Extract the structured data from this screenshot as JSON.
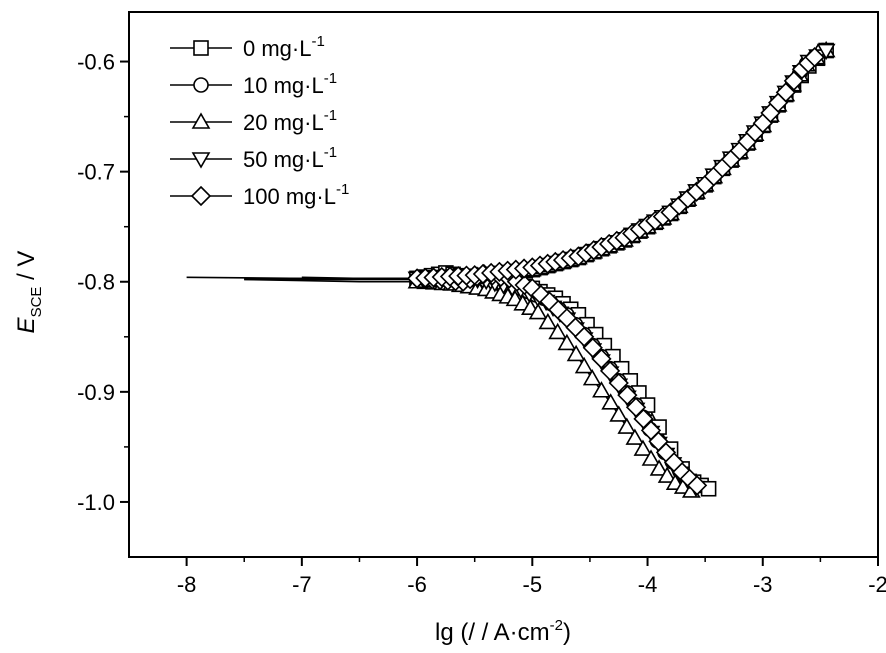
{
  "chart_data": {
    "type": "line",
    "xlabel": "lg (/ / A·cm",
    "xlabel_sup": "-2",
    "xlabel_end": ")",
    "ylabel_main": "E",
    "ylabel_sub": "SCE",
    "ylabel_unit": " / V",
    "xlim": [
      -8.5,
      -2
    ],
    "ylim": [
      -1.05,
      -0.555
    ],
    "x_ticks": [
      -8,
      -7,
      -6,
      -5,
      -4,
      -3,
      -2
    ],
    "x_tick_labels": [
      "-8",
      "-7",
      "-6",
      "-5",
      "-4",
      "-3",
      "-2"
    ],
    "y_ticks": [
      -1.0,
      -0.9,
      -0.8,
      -0.7,
      -0.6
    ],
    "y_tick_labels": [
      "-1.0",
      "-0.9",
      "-0.8",
      "-0.7",
      "-0.6"
    ],
    "grid": false,
    "legend_position": "top-left",
    "series": [
      {
        "name": "0 mg·L",
        "name_sup": "-1",
        "marker": "square",
        "cathodic": [
          [
            -8.0,
            -0.796
          ],
          [
            -7.0,
            -0.797
          ],
          [
            -6.0,
            -0.797
          ],
          [
            -5.75,
            -0.792
          ],
          [
            -5.5,
            -0.797
          ],
          [
            -5.2,
            -0.801
          ],
          [
            -5.0,
            -0.806
          ],
          [
            -4.8,
            -0.815
          ],
          [
            -4.6,
            -0.83
          ],
          [
            -4.45,
            -0.848
          ],
          [
            -4.3,
            -0.868
          ],
          [
            -4.15,
            -0.89
          ],
          [
            -4.0,
            -0.912
          ],
          [
            -3.9,
            -0.932
          ],
          [
            -3.8,
            -0.952
          ],
          [
            -3.7,
            -0.97
          ],
          [
            -3.6,
            -0.982
          ],
          [
            -3.47,
            -0.988
          ]
        ],
        "anodic": [
          [
            -6.0,
            -0.797
          ],
          [
            -5.5,
            -0.795
          ],
          [
            -5.0,
            -0.789
          ],
          [
            -4.6,
            -0.778
          ],
          [
            -4.2,
            -0.762
          ],
          [
            -3.8,
            -0.738
          ],
          [
            -3.5,
            -0.712
          ],
          [
            -3.2,
            -0.682
          ],
          [
            -3.0,
            -0.658
          ],
          [
            -2.8,
            -0.63
          ],
          [
            -2.6,
            -0.604
          ],
          [
            -2.45,
            -0.59
          ]
        ]
      },
      {
        "name": "10 mg·L",
        "name_sup": "-1",
        "marker": "circle",
        "cathodic": [
          [
            -7.5,
            -0.798
          ],
          [
            -7.0,
            -0.798
          ],
          [
            -6.0,
            -0.798
          ],
          [
            -5.7,
            -0.796
          ],
          [
            -5.4,
            -0.799
          ],
          [
            -5.1,
            -0.806
          ],
          [
            -4.9,
            -0.815
          ],
          [
            -4.7,
            -0.83
          ],
          [
            -4.55,
            -0.848
          ],
          [
            -4.4,
            -0.868
          ],
          [
            -4.25,
            -0.89
          ],
          [
            -4.1,
            -0.912
          ],
          [
            -3.98,
            -0.934
          ],
          [
            -3.85,
            -0.955
          ],
          [
            -3.72,
            -0.972
          ],
          [
            -3.6,
            -0.985
          ]
        ],
        "anodic": [
          [
            -6.0,
            -0.798
          ],
          [
            -5.5,
            -0.795
          ],
          [
            -5.0,
            -0.789
          ],
          [
            -4.6,
            -0.778
          ],
          [
            -4.2,
            -0.762
          ],
          [
            -3.8,
            -0.738
          ],
          [
            -3.5,
            -0.712
          ],
          [
            -3.2,
            -0.681
          ],
          [
            -3.0,
            -0.657
          ],
          [
            -2.8,
            -0.629
          ],
          [
            -2.62,
            -0.602
          ],
          [
            -2.48,
            -0.59
          ]
        ]
      },
      {
        "name": "20 mg·L",
        "name_sup": "-1",
        "marker": "triangle-up",
        "cathodic": [
          [
            -7.5,
            -0.798
          ],
          [
            -7.0,
            -0.799
          ],
          [
            -6.5,
            -0.8
          ],
          [
            -6.0,
            -0.8
          ],
          [
            -5.7,
            -0.802
          ],
          [
            -5.4,
            -0.807
          ],
          [
            -5.15,
            -0.816
          ],
          [
            -4.95,
            -0.828
          ],
          [
            -4.78,
            -0.846
          ],
          [
            -4.62,
            -0.866
          ],
          [
            -4.48,
            -0.888
          ],
          [
            -4.32,
            -0.91
          ],
          [
            -4.18,
            -0.932
          ],
          [
            -4.04,
            -0.952
          ],
          [
            -3.9,
            -0.97
          ],
          [
            -3.76,
            -0.983
          ],
          [
            -3.62,
            -0.99
          ]
        ],
        "anodic": [
          [
            -6.0,
            -0.8
          ],
          [
            -5.5,
            -0.796
          ],
          [
            -5.0,
            -0.789
          ],
          [
            -4.6,
            -0.778
          ],
          [
            -4.2,
            -0.762
          ],
          [
            -3.8,
            -0.738
          ],
          [
            -3.5,
            -0.712
          ],
          [
            -3.2,
            -0.682
          ],
          [
            -3.0,
            -0.658
          ],
          [
            -2.8,
            -0.63
          ],
          [
            -2.62,
            -0.603
          ],
          [
            -2.45,
            -0.59
          ]
        ]
      },
      {
        "name": "50 mg·L",
        "name_sup": "-1",
        "marker": "triangle-down",
        "cathodic": [
          [
            -7.0,
            -0.796
          ],
          [
            -6.5,
            -0.797
          ],
          [
            -6.0,
            -0.797
          ],
          [
            -5.7,
            -0.795
          ],
          [
            -5.4,
            -0.799
          ],
          [
            -5.1,
            -0.807
          ],
          [
            -4.88,
            -0.818
          ],
          [
            -4.7,
            -0.834
          ],
          [
            -4.55,
            -0.852
          ],
          [
            -4.4,
            -0.872
          ],
          [
            -4.25,
            -0.894
          ],
          [
            -4.1,
            -0.916
          ],
          [
            -3.97,
            -0.937
          ],
          [
            -3.84,
            -0.957
          ],
          [
            -3.72,
            -0.974
          ],
          [
            -3.58,
            -0.987
          ]
        ],
        "anodic": [
          [
            -6.0,
            -0.797
          ],
          [
            -5.5,
            -0.795
          ],
          [
            -5.0,
            -0.789
          ],
          [
            -4.6,
            -0.778
          ],
          [
            -4.2,
            -0.761
          ],
          [
            -3.8,
            -0.737
          ],
          [
            -3.5,
            -0.711
          ],
          [
            -3.2,
            -0.68
          ],
          [
            -3.0,
            -0.656
          ],
          [
            -2.8,
            -0.628
          ],
          [
            -2.6,
            -0.6
          ],
          [
            -2.45,
            -0.59
          ]
        ]
      },
      {
        "name": "100 mg·L",
        "name_sup": "-1",
        "marker": "diamond",
        "cathodic": [
          [
            -7.5,
            -0.797
          ],
          [
            -7.0,
            -0.797
          ],
          [
            -6.5,
            -0.797
          ],
          [
            -6.0,
            -0.797
          ],
          [
            -5.6,
            -0.8
          ],
          [
            -5.42,
            -0.793
          ],
          [
            -5.2,
            -0.797
          ],
          [
            -5.0,
            -0.806
          ],
          [
            -4.85,
            -0.818
          ],
          [
            -4.7,
            -0.833
          ],
          [
            -4.55,
            -0.85
          ],
          [
            -4.4,
            -0.87
          ],
          [
            -4.25,
            -0.892
          ],
          [
            -4.1,
            -0.914
          ],
          [
            -3.97,
            -0.935
          ],
          [
            -3.84,
            -0.955
          ],
          [
            -3.7,
            -0.973
          ],
          [
            -3.57,
            -0.985
          ]
        ],
        "anodic": [
          [
            -6.0,
            -0.797
          ],
          [
            -5.5,
            -0.794
          ],
          [
            -5.0,
            -0.787
          ],
          [
            -4.6,
            -0.777
          ],
          [
            -4.2,
            -0.76
          ],
          [
            -3.8,
            -0.737
          ],
          [
            -3.5,
            -0.712
          ],
          [
            -3.2,
            -0.681
          ],
          [
            -3.0,
            -0.656
          ],
          [
            -2.8,
            -0.628
          ],
          [
            -2.66,
            -0.607
          ],
          [
            -2.55,
            -0.596
          ]
        ]
      }
    ]
  }
}
